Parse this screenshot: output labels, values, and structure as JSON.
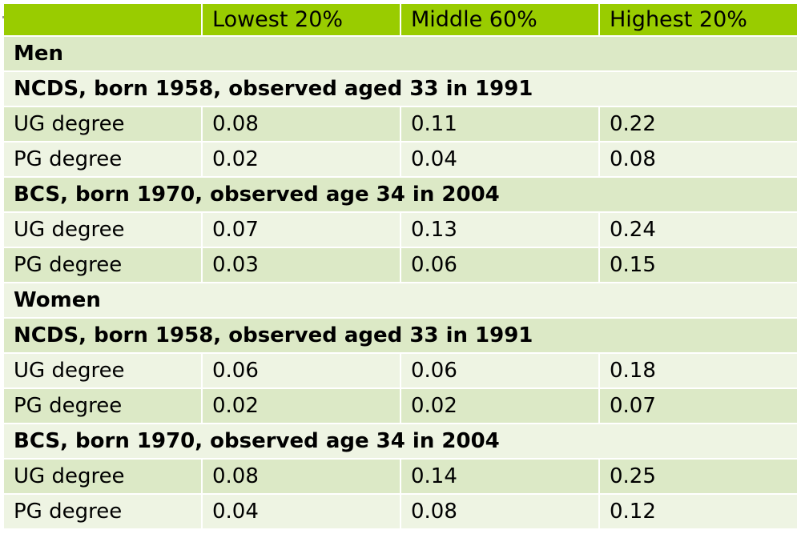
{
  "header": [
    "",
    "Lowest 20%",
    "Middle 60%",
    "Highest 20%"
  ],
  "rows": [
    {
      "type": "section",
      "label": "Men"
    },
    {
      "type": "section",
      "label": "NCDS, born 1958, observed aged 33 in 1991"
    },
    {
      "type": "data",
      "cells": [
        "UG degree",
        "0.08",
        "0.11",
        "0.22"
      ]
    },
    {
      "type": "data",
      "cells": [
        "PG degree",
        "0.02",
        "0.04",
        "0.08"
      ]
    },
    {
      "type": "section",
      "label": "BCS, born 1970, observed age 34 in 2004"
    },
    {
      "type": "data",
      "cells": [
        "UG degree",
        "0.07",
        "0.13",
        "0.24"
      ]
    },
    {
      "type": "data",
      "cells": [
        "PG degree",
        "0.03",
        "0.06",
        "0.15"
      ]
    },
    {
      "type": "section",
      "label": "Women"
    },
    {
      "type": "section",
      "label": "NCDS, born 1958, observed aged 33 in 1991"
    },
    {
      "type": "data",
      "cells": [
        "UG degree",
        "0.06",
        "0.06",
        "0.18"
      ]
    },
    {
      "type": "data",
      "cells": [
        "PG degree",
        "0.02",
        "0.02",
        "0.07"
      ]
    },
    {
      "type": "section",
      "label": "BCS, born 1970, observed age 34 in 2004"
    },
    {
      "type": "data",
      "cells": [
        "UG degree",
        "0.08",
        "0.14",
        "0.25"
      ]
    },
    {
      "type": "data",
      "cells": [
        "PG degree",
        "0.04",
        "0.08",
        "0.12"
      ]
    }
  ],
  "colors": {
    "header_bg": "#99cc00",
    "row_dark": "#dce9c6",
    "row_light": "#eef4e3"
  }
}
